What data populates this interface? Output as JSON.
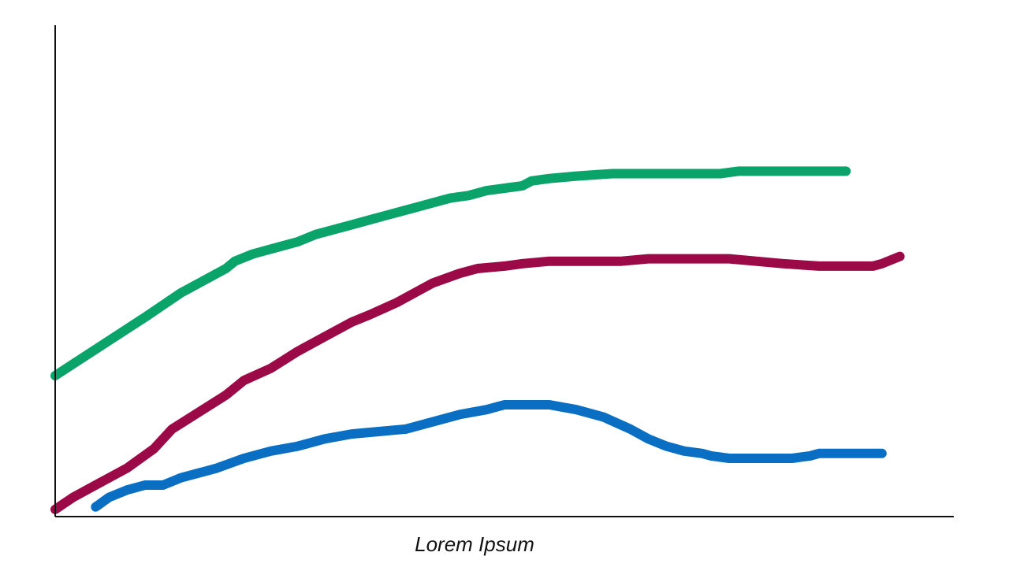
{
  "chart_data": {
    "type": "line",
    "title": "",
    "xlabel": "Lorem Ipsum",
    "ylabel": "",
    "xlim": [
      0,
      100
    ],
    "ylim": [
      0,
      100
    ],
    "grid": false,
    "legend": "none",
    "series": [
      {
        "color": "#0aa36a",
        "x": [
          0,
          5,
          10,
          14,
          17,
          19,
          20,
          22,
          25,
          27,
          29,
          31,
          33,
          35,
          37,
          40,
          42,
          44,
          46,
          48,
          50,
          52,
          53,
          55,
          58,
          62,
          66,
          68,
          70,
          72,
          74,
          76,
          78,
          80,
          84,
          88
        ],
        "y": [
          28,
          34,
          40,
          45,
          48,
          50,
          51.5,
          53,
          54.5,
          55.5,
          57,
          58,
          59,
          60,
          61,
          62.5,
          63.5,
          64.5,
          65,
          66,
          66.5,
          67,
          68,
          68.5,
          69,
          69.5,
          69.5,
          69.5,
          69.5,
          69.5,
          69.5,
          70,
          70,
          70,
          70,
          70
        ]
      },
      {
        "color": "#9b0a46",
        "x": [
          0,
          2,
          5,
          8,
          11,
          13,
          16,
          19,
          21,
          24,
          27,
          30,
          33,
          35,
          38,
          40,
          42,
          45,
          47,
          50,
          52,
          55,
          58,
          60,
          63,
          66,
          69,
          72,
          75,
          78,
          81,
          85,
          87,
          89,
          91,
          92,
          94
        ],
        "y": [
          0.5,
          3,
          6,
          9,
          13,
          17,
          20.5,
          24,
          27,
          29.5,
          33,
          36,
          39,
          40.5,
          43,
          45,
          47,
          49,
          50,
          50.5,
          51,
          51.5,
          51.5,
          51.5,
          51.5,
          52,
          52,
          52,
          52,
          51.5,
          51,
          50.5,
          50.5,
          50.5,
          50.5,
          51,
          52.5
        ]
      },
      {
        "color": "#0a6fc2",
        "x": [
          4.5,
          6,
          8,
          10,
          12,
          14,
          16,
          18,
          21,
          24,
          27,
          30,
          33,
          36,
          39,
          42,
          45,
          48,
          50,
          52,
          54,
          55,
          58,
          61,
          64,
          66,
          68,
          70,
          72,
          73,
          75,
          78,
          80,
          82,
          84,
          85,
          88,
          92
        ],
        "y": [
          1,
          3,
          4.5,
          5.5,
          5.5,
          7,
          8,
          9,
          11,
          12.5,
          13.5,
          15,
          16,
          16.5,
          17,
          18.5,
          20,
          21,
          22,
          22,
          22,
          22,
          21,
          19.5,
          17,
          15,
          13.5,
          12.5,
          12,
          11.5,
          11,
          11,
          11,
          11,
          11.5,
          12,
          12,
          12
        ]
      }
    ]
  }
}
